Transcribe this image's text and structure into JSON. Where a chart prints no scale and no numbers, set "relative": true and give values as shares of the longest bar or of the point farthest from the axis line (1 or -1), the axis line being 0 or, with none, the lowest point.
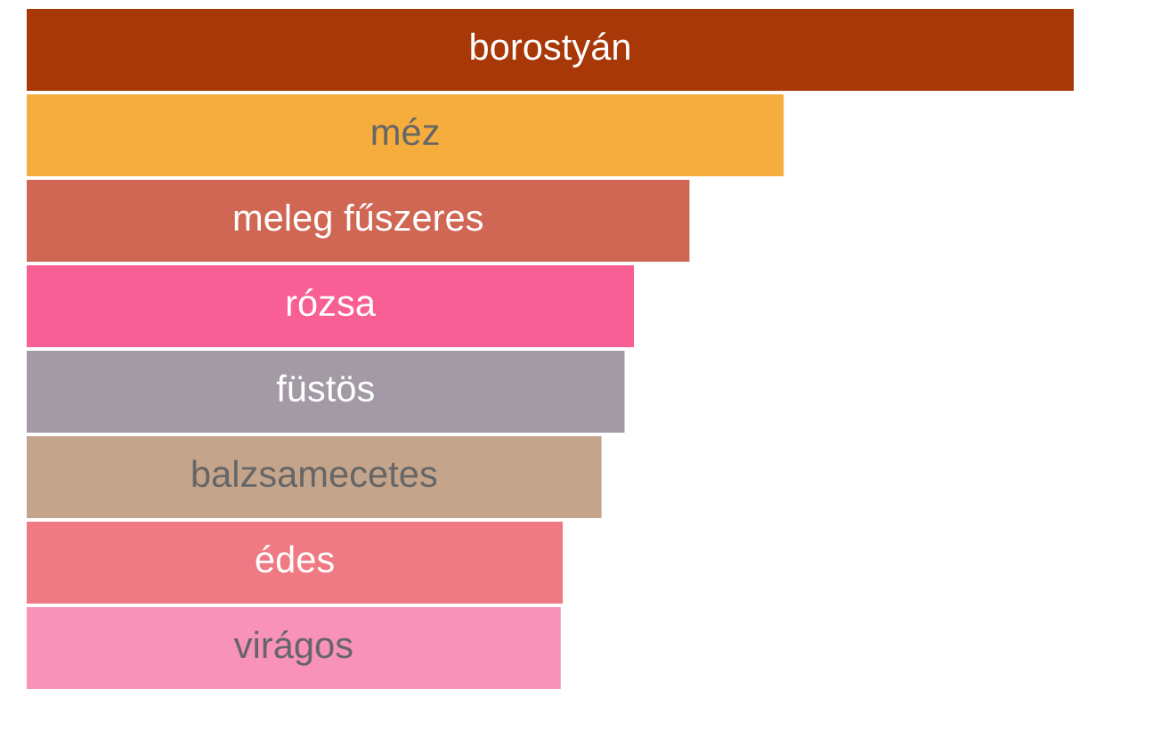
{
  "chart_data": {
    "type": "bar",
    "orientation": "horizontal",
    "relative": true,
    "categories": [
      "borostyán",
      "méz",
      "meleg fűszeres",
      "rózsa",
      "füstös",
      "balzsamecetes",
      "édes",
      "virágos"
    ],
    "values": [
      1,
      0.723,
      0.633,
      0.58,
      0.571,
      0.549,
      0.512,
      0.51
    ],
    "colors": [
      "#a83808",
      "#f5ae3e",
      "#d06654",
      "#f75f95",
      "#a39aa6",
      "#c4a58c",
      "#ef7a83",
      "#f892b8"
    ],
    "legend": false
  }
}
